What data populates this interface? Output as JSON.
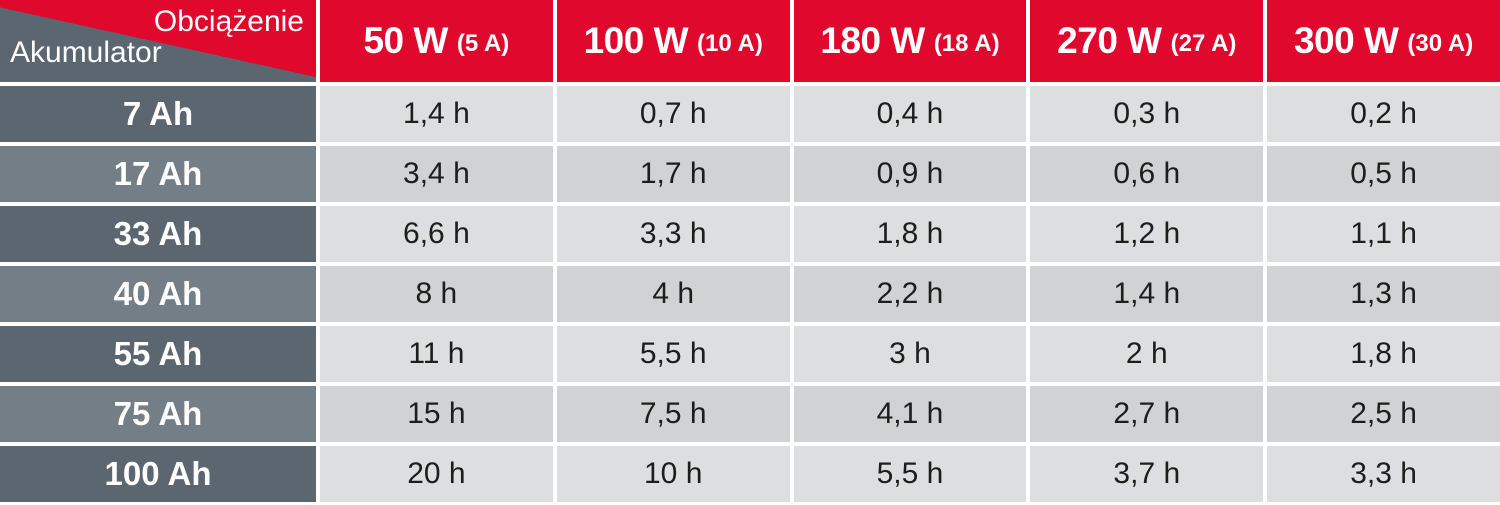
{
  "colors": {
    "header_red": "#E1082D",
    "row_header_dark": "#5B6670",
    "row_header_light": "#747E87",
    "cell_light": "#DDDEDF",
    "cell_dark": "#D0D2D4",
    "separator": "#FFFFFF",
    "data_text": "#1D1D1B"
  },
  "table": {
    "corner": {
      "load_label": "Obciążenie",
      "battery_label": "Akumulator"
    },
    "columns": [
      {
        "power": "50 W",
        "amps": "(5 A)"
      },
      {
        "power": "100 W",
        "amps": "(10 A)"
      },
      {
        "power": "180 W",
        "amps": "(18 A)"
      },
      {
        "power": "270 W",
        "amps": "(27 A)"
      },
      {
        "power": "300 W",
        "amps": "(30 A)"
      }
    ],
    "rows": [
      {
        "battery": "7 Ah",
        "values": [
          "1,4 h",
          "0,7 h",
          "0,4 h",
          "0,3 h",
          "0,2 h"
        ]
      },
      {
        "battery": "17 Ah",
        "values": [
          "3,4 h",
          "1,7 h",
          "0,9 h",
          "0,6 h",
          "0,5 h"
        ]
      },
      {
        "battery": "33 Ah",
        "values": [
          "6,6 h",
          "3,3 h",
          "1,8 h",
          "1,2 h",
          "1,1 h"
        ]
      },
      {
        "battery": "40 Ah",
        "values": [
          "8 h",
          "4 h",
          "2,2 h",
          "1,4 h",
          "1,3 h"
        ]
      },
      {
        "battery": "55 Ah",
        "values": [
          "11 h",
          "5,5 h",
          "3 h",
          "2 h",
          "1,8 h"
        ]
      },
      {
        "battery": "75 Ah",
        "values": [
          "15 h",
          "7,5 h",
          "4,1 h",
          "2,7 h",
          "2,5 h"
        ]
      },
      {
        "battery": "100 Ah",
        "values": [
          "20 h",
          "10 h",
          "5,5 h",
          "3,7 h",
          "3,3 h"
        ]
      }
    ]
  },
  "chart_data": {
    "type": "table",
    "title": "",
    "corner_labels": {
      "top_right": "Obciążenie",
      "bottom_left": "Akumulator"
    },
    "column_headers": [
      "50 W (5 A)",
      "100 W (10 A)",
      "180 W (18 A)",
      "270 W (27 A)",
      "300 W (30 A)"
    ],
    "row_headers_ah": [
      7,
      17,
      33,
      40,
      55,
      75,
      100
    ],
    "load_watts": [
      50,
      100,
      180,
      270,
      300
    ],
    "load_amps": [
      5,
      10,
      18,
      27,
      30
    ],
    "runtime_hours": [
      [
        1.4,
        0.7,
        0.4,
        0.3,
        0.2
      ],
      [
        3.4,
        1.7,
        0.9,
        0.6,
        0.5
      ],
      [
        6.6,
        3.3,
        1.8,
        1.2,
        1.1
      ],
      [
        8,
        4,
        2.2,
        1.4,
        1.3
      ],
      [
        11,
        5.5,
        3,
        2,
        1.8
      ],
      [
        15,
        7.5,
        4.1,
        2.7,
        2.5
      ],
      [
        20,
        10,
        5.5,
        3.7,
        3.3
      ]
    ],
    "unit": "h",
    "decimal_separator": ","
  }
}
